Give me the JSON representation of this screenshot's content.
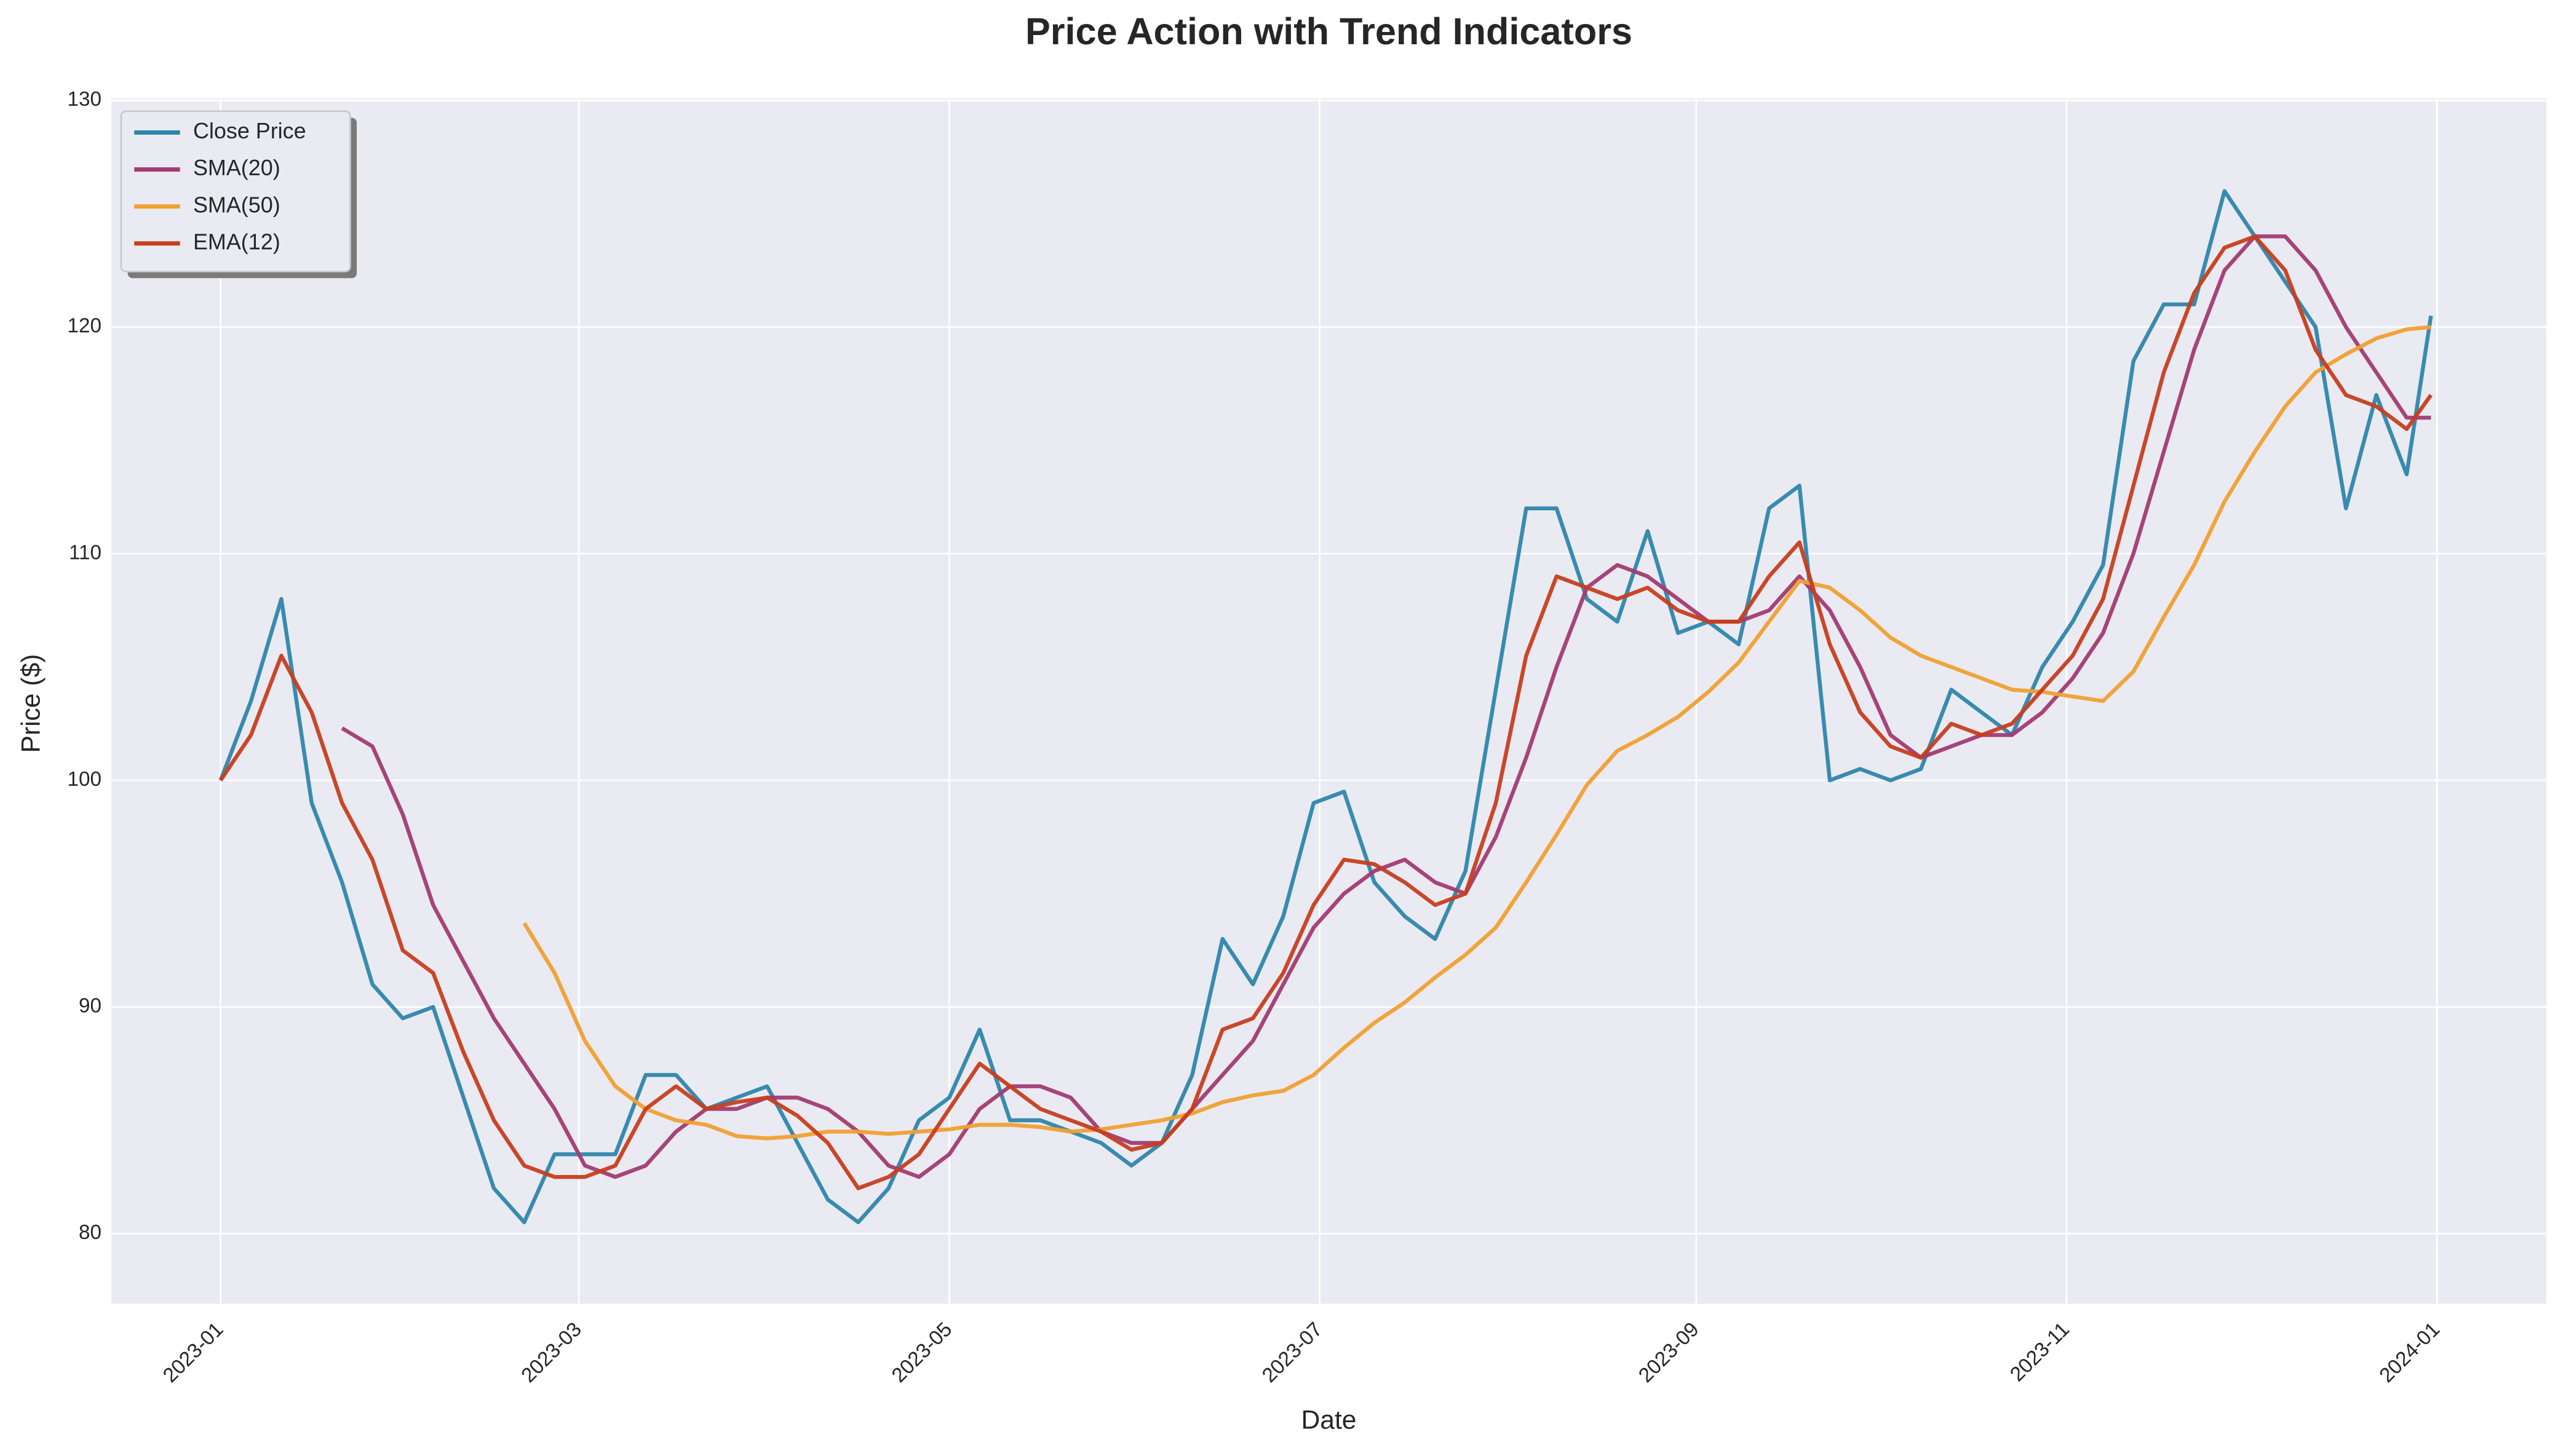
{
  "chart_data": {
    "type": "line",
    "title": "Price Action with Trend Indicators",
    "xlabel": "Date",
    "ylabel": "Price ($)",
    "x": [
      "2023-01-01",
      "2023-01-06",
      "2023-01-11",
      "2023-01-16",
      "2023-01-21",
      "2023-01-26",
      "2023-01-31",
      "2023-02-05",
      "2023-02-10",
      "2023-02-15",
      "2023-02-20",
      "2023-02-25",
      "2023-03-02",
      "2023-03-07",
      "2023-03-12",
      "2023-03-17",
      "2023-03-22",
      "2023-03-27",
      "2023-04-01",
      "2023-04-06",
      "2023-04-11",
      "2023-04-16",
      "2023-04-21",
      "2023-04-26",
      "2023-05-01",
      "2023-05-06",
      "2023-05-11",
      "2023-05-16",
      "2023-05-21",
      "2023-05-26",
      "2023-05-31",
      "2023-06-05",
      "2023-06-10",
      "2023-06-15",
      "2023-06-20",
      "2023-06-25",
      "2023-06-30",
      "2023-07-05",
      "2023-07-10",
      "2023-07-15",
      "2023-07-20",
      "2023-07-25",
      "2023-07-30",
      "2023-08-04",
      "2023-08-09",
      "2023-08-14",
      "2023-08-19",
      "2023-08-24",
      "2023-08-29",
      "2023-09-03",
      "2023-09-08",
      "2023-09-13",
      "2023-09-18",
      "2023-09-23",
      "2023-09-28",
      "2023-10-03",
      "2023-10-08",
      "2023-10-13",
      "2023-10-18",
      "2023-10-23",
      "2023-10-28",
      "2023-11-02",
      "2023-11-07",
      "2023-11-12",
      "2023-11-17",
      "2023-11-22",
      "2023-11-27",
      "2023-12-02",
      "2023-12-07",
      "2023-12-12",
      "2023-12-17",
      "2023-12-22",
      "2023-12-27",
      "2023-12-31"
    ],
    "series": [
      {
        "name": "Close Price",
        "color": "#2e86ab",
        "values": [
          100,
          103.5,
          108,
          99,
          95.5,
          91,
          89.5,
          90,
          86,
          82,
          80.5,
          83.5,
          83.5,
          83.5,
          87,
          87,
          85.5,
          86,
          86.5,
          84,
          81.5,
          80.5,
          82,
          85,
          86,
          89,
          85,
          85,
          84.5,
          84,
          83,
          84,
          87,
          93,
          91,
          94,
          99,
          99.5,
          95.5,
          94,
          93,
          96,
          104,
          112,
          112,
          108,
          107,
          111,
          106.5,
          107,
          106,
          112,
          113,
          100,
          100.5,
          100,
          100.5,
          104,
          103,
          102,
          105,
          107,
          109.5,
          118.5,
          121,
          121,
          126,
          124,
          122,
          120,
          112,
          117,
          113.5,
          120.5
        ]
      },
      {
        "name": "SMA(20)",
        "color": "#a23b72",
        "values": [
          null,
          null,
          null,
          null,
          102.3,
          101.5,
          98.5,
          94.5,
          92,
          89.5,
          87.5,
          85.5,
          83,
          82.5,
          83,
          84.5,
          85.5,
          85.5,
          86,
          86,
          85.5,
          84.5,
          83,
          82.5,
          83.5,
          85.5,
          86.5,
          86.5,
          86,
          84.5,
          84,
          84,
          85.5,
          87,
          88.5,
          91,
          93.5,
          95,
          96,
          96.5,
          95.5,
          95,
          97.5,
          101,
          105,
          108.5,
          109.5,
          109,
          108,
          107,
          107,
          107.5,
          109,
          107.5,
          105,
          102,
          101,
          101.5,
          102,
          102,
          103,
          104.5,
          106.5,
          110,
          114.5,
          119,
          122.5,
          124,
          124,
          122.5,
          120,
          118,
          116,
          116
        ]
      },
      {
        "name": "SMA(50)",
        "color": "#f0a030",
        "values": [
          null,
          null,
          null,
          null,
          null,
          null,
          null,
          null,
          null,
          null,
          93.7,
          91.5,
          88.5,
          86.5,
          85.5,
          85,
          84.8,
          84.3,
          84.2,
          84.3,
          84.5,
          84.5,
          84.4,
          84.5,
          84.6,
          84.8,
          84.8,
          84.7,
          84.5,
          84.6,
          84.8,
          85,
          85.3,
          85.8,
          86.1,
          86.3,
          87,
          88.2,
          89.3,
          90.2,
          91.3,
          92.3,
          93.5,
          95.5,
          97.6,
          99.8,
          101.3,
          102,
          102.8,
          103.9,
          105.2,
          107,
          108.8,
          108.5,
          107.5,
          106.3,
          105.5,
          105,
          104.5,
          104,
          103.9,
          103.7,
          103.5,
          104.8,
          107.2,
          109.5,
          112.3,
          114.5,
          116.5,
          118,
          118.8,
          119.5,
          119.9,
          120
        ]
      },
      {
        "name": "EMA(12)",
        "color": "#c73e1d",
        "values": [
          100,
          102,
          105.5,
          103,
          99,
          96.5,
          92.5,
          91.5,
          88,
          85,
          83,
          82.5,
          82.5,
          83,
          85.5,
          86.5,
          85.5,
          85.8,
          86,
          85.2,
          84,
          82,
          82.5,
          83.5,
          85.5,
          87.5,
          86.5,
          85.5,
          85,
          84.5,
          83.7,
          84,
          85.5,
          89,
          89.5,
          91.5,
          94.5,
          96.5,
          96.3,
          95.5,
          94.5,
          95,
          99,
          105.5,
          109,
          108.5,
          108,
          108.5,
          107.5,
          107,
          107,
          109,
          110.5,
          106,
          103,
          101.5,
          101,
          102.5,
          102,
          102.5,
          104,
          105.5,
          108,
          113,
          118,
          121.5,
          123.5,
          124,
          122.5,
          119,
          117,
          116.5,
          115.5,
          117
        ]
      }
    ],
    "xlim": [
      "2022-12-14",
      "2024-01-19"
    ],
    "xticks": [
      {
        "value": "2023-01-01",
        "label": "2023-01"
      },
      {
        "value": "2023-03-01",
        "label": "2023-03"
      },
      {
        "value": "2023-05-01",
        "label": "2023-05"
      },
      {
        "value": "2023-07-01",
        "label": "2023-07"
      },
      {
        "value": "2023-09-01",
        "label": "2023-09"
      },
      {
        "value": "2023-11-01",
        "label": "2023-11"
      },
      {
        "value": "2024-01-01",
        "label": "2024-01"
      }
    ],
    "ylim": [
      76.9,
      130.1
    ],
    "yticks": [
      80,
      90,
      100,
      110,
      120,
      130
    ],
    "grid": true,
    "legend": "upper left"
  }
}
